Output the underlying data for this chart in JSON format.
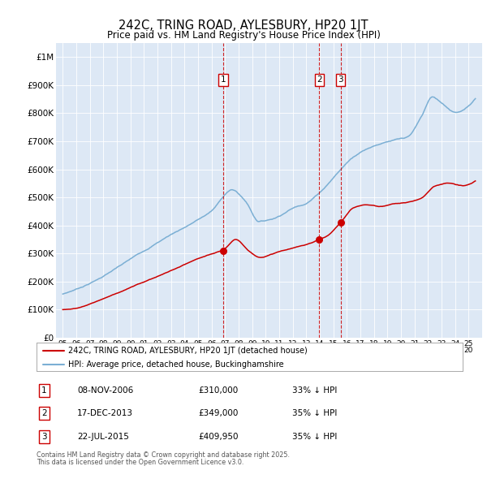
{
  "title": "242C, TRING ROAD, AYLESBURY, HP20 1JT",
  "subtitle": "Price paid vs. HM Land Registry's House Price Index (HPI)",
  "legend_line1": "242C, TRING ROAD, AYLESBURY, HP20 1JT (detached house)",
  "legend_line2": "HPI: Average price, detached house, Buckinghamshire",
  "footer1": "Contains HM Land Registry data © Crown copyright and database right 2025.",
  "footer2": "This data is licensed under the Open Government Licence v3.0.",
  "red_color": "#cc0000",
  "blue_color": "#7bafd4",
  "background_color": "#dde8f5",
  "transactions": [
    {
      "num": 1,
      "date": "08-NOV-2006",
      "price": 310000,
      "hpi_note": "33% ↓ HPI",
      "x_year": 2006.86
    },
    {
      "num": 2,
      "date": "17-DEC-2013",
      "price": 349000,
      "hpi_note": "35% ↓ HPI",
      "x_year": 2013.96
    },
    {
      "num": 3,
      "date": "22-JUL-2015",
      "price": 409950,
      "hpi_note": "35% ↓ HPI",
      "x_year": 2015.55
    }
  ],
  "ylim": [
    0,
    1050000
  ],
  "yticks": [
    0,
    100000,
    200000,
    300000,
    400000,
    500000,
    600000,
    700000,
    800000,
    900000,
    1000000
  ],
  "ytick_labels": [
    "£0",
    "£100K",
    "£200K",
    "£300K",
    "£400K",
    "£500K",
    "£600K",
    "£700K",
    "£800K",
    "£900K",
    "£1M"
  ],
  "xlim_start": 1994.5,
  "xlim_end": 2026.0,
  "xticks": [
    1995,
    1996,
    1997,
    1998,
    1999,
    2000,
    2001,
    2002,
    2003,
    2004,
    2005,
    2006,
    2007,
    2008,
    2009,
    2010,
    2011,
    2012,
    2013,
    2014,
    2015,
    2016,
    2017,
    2018,
    2019,
    2020,
    2021,
    2022,
    2023,
    2024,
    2025
  ]
}
